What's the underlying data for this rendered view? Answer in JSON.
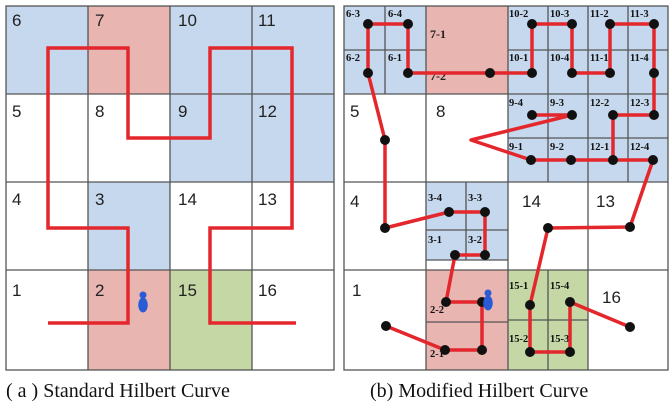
{
  "colors": {
    "blue": "#c6d8ee",
    "pink": "#e8b5b0",
    "green": "#c4d7a4",
    "curve": "#e3272c",
    "grid": "#555555",
    "marker": "#2a5bd7"
  },
  "captions": {
    "a": "( a ) Standard Hilbert Curve",
    "b": "(b) Modified Hilbert Curve"
  },
  "panel_a": {
    "cells": [
      {
        "label": "6",
        "col": 0,
        "row": 0,
        "fill": "blue"
      },
      {
        "label": "7",
        "col": 1,
        "row": 0,
        "fill": "pink"
      },
      {
        "label": "10",
        "col": 2,
        "row": 0,
        "fill": "blue"
      },
      {
        "label": "11",
        "col": 3,
        "row": 0,
        "fill": "blue"
      },
      {
        "label": "5",
        "col": 0,
        "row": 1,
        "fill": "white"
      },
      {
        "label": "8",
        "col": 1,
        "row": 1,
        "fill": "white"
      },
      {
        "label": "9",
        "col": 2,
        "row": 1,
        "fill": "blue"
      },
      {
        "label": "12",
        "col": 3,
        "row": 1,
        "fill": "blue"
      },
      {
        "label": "4",
        "col": 0,
        "row": 2,
        "fill": "white"
      },
      {
        "label": "3",
        "col": 1,
        "row": 2,
        "fill": "blue"
      },
      {
        "label": "14",
        "col": 2,
        "row": 2,
        "fill": "white"
      },
      {
        "label": "13",
        "col": 3,
        "row": 2,
        "fill": "white"
      },
      {
        "label": "1",
        "col": 0,
        "row": 3,
        "fill": "white"
      },
      {
        "label": "2",
        "col": 1,
        "row": 3,
        "fill": "pink"
      },
      {
        "label": "15",
        "col": 2,
        "row": 3,
        "fill": "green"
      },
      {
        "label": "16",
        "col": 3,
        "row": 3,
        "fill": "white"
      }
    ]
  },
  "panel_b": {
    "cells": [
      {
        "label": "7-1",
        "col": 1,
        "row": 0,
        "fill": "pink"
      },
      {
        "label": "7-2",
        "col": 1,
        "row": 0,
        "fill": "pink"
      },
      {
        "label": "5",
        "col": 0,
        "row": 1,
        "fill": "white"
      },
      {
        "label": "8",
        "col": 1,
        "row": 1,
        "fill": "white"
      },
      {
        "label": "4",
        "col": 0,
        "row": 2,
        "fill": "white"
      },
      {
        "label": "14",
        "col": 2,
        "row": 2,
        "fill": "white"
      },
      {
        "label": "13",
        "col": 3,
        "row": 2,
        "fill": "white"
      },
      {
        "label": "1",
        "col": 0,
        "row": 3,
        "fill": "white"
      },
      {
        "label": "16",
        "col": 3,
        "row": 3,
        "fill": "white"
      }
    ],
    "subcells": [
      {
        "label": "6-3"
      },
      {
        "label": "6-4"
      },
      {
        "label": "6-2"
      },
      {
        "label": "6-1"
      },
      {
        "label": "10-2"
      },
      {
        "label": "10-3"
      },
      {
        "label": "10-1"
      },
      {
        "label": "10-4"
      },
      {
        "label": "11-2"
      },
      {
        "label": "11-3"
      },
      {
        "label": "11-1"
      },
      {
        "label": "11-4"
      },
      {
        "label": "9-4"
      },
      {
        "label": "9-3"
      },
      {
        "label": "9-1"
      },
      {
        "label": "9-2"
      },
      {
        "label": "12-2"
      },
      {
        "label": "12-3"
      },
      {
        "label": "12-1"
      },
      {
        "label": "12-4"
      },
      {
        "label": "3-4"
      },
      {
        "label": "3-3"
      },
      {
        "label": "3-1"
      },
      {
        "label": "3-2"
      },
      {
        "label": "2-2"
      },
      {
        "label": "2-1"
      },
      {
        "label": "15-1"
      },
      {
        "label": "15-4"
      },
      {
        "label": "15-2"
      },
      {
        "label": "15-3"
      }
    ]
  }
}
